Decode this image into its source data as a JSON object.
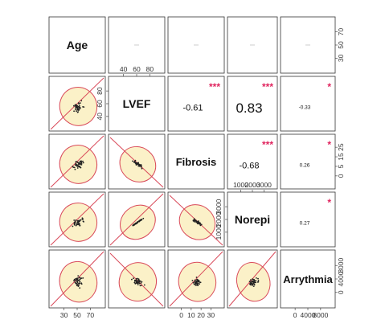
{
  "chart_data": {
    "type": "scatter-matrix",
    "variables": [
      "Age",
      "LVEF",
      "Fibrosis",
      "Norepi",
      "Arrythmia"
    ],
    "ranges": {
      "Age": [
        25,
        85
      ],
      "LVEF": [
        30,
        75
      ],
      "Fibrosis": [
        0,
        35
      ],
      "Norepi": [
        500,
        3200
      ],
      "Arrythmia": [
        0,
        10000
      ]
    },
    "top_ticks": {
      "LVEF": [
        "40",
        "60",
        "80"
      ],
      "Norepi": [
        "1000",
        "2000",
        "3000"
      ]
    },
    "bottom_ticks": {
      "Age": [
        "30",
        "50",
        "70"
      ],
      "Fibrosis": [
        "0",
        "10",
        "20",
        "30"
      ],
      "Arrythmia": [
        "0",
        "4000",
        "8000"
      ]
    },
    "left_ticks": {
      "LVEF": [
        "40",
        "60",
        "80"
      ],
      "Norepi": [
        "1000",
        "2000",
        "3000"
      ]
    },
    "right_ticks": {
      "Age": [
        "30",
        "50",
        "70"
      ],
      "Fibrosis": [
        "0",
        "5",
        "15",
        "25"
      ],
      "Arrythmia": [
        "0",
        "4000",
        "8000"
      ]
    },
    "correlations": [
      {
        "row": "Age",
        "col": "LVEF",
        "r": "",
        "stars": ""
      },
      {
        "row": "Age",
        "col": "Fibrosis",
        "r": "",
        "stars": ""
      },
      {
        "row": "Age",
        "col": "Norepi",
        "r": "",
        "stars": ""
      },
      {
        "row": "Age",
        "col": "Arrythmia",
        "r": "",
        "stars": ""
      },
      {
        "row": "LVEF",
        "col": "Fibrosis",
        "r": "-0.61",
        "stars": "***"
      },
      {
        "row": "LVEF",
        "col": "Norepi",
        "r": "0.83",
        "stars": "***"
      },
      {
        "row": "LVEF",
        "col": "Arrythmia",
        "r": "-0.33",
        "stars": "*"
      },
      {
        "row": "Fibrosis",
        "col": "Norepi",
        "r": "-0.68",
        "stars": "***"
      },
      {
        "row": "Fibrosis",
        "col": "Arrythmia",
        "r": "0.26",
        "stars": "*"
      },
      {
        "row": "Norepi",
        "col": "Arrythmia",
        "r": "0.27",
        "stars": "*"
      }
    ],
    "colors": {
      "ellipse_fill": "#fbf1c8",
      "ellipse_stroke": "#d94a5a",
      "fit_line": "#d94a5a",
      "points": "#222222",
      "stars": "#e0245e"
    }
  }
}
